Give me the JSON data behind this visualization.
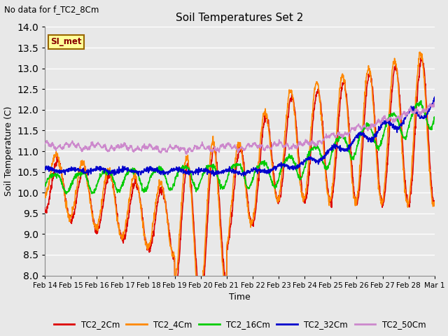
{
  "title": "Soil Temperatures Set 2",
  "subtitle": "No data for f_TC2_8Cm",
  "xlabel": "Time",
  "ylabel": "Soil Temperature (C)",
  "ylim": [
    8.0,
    14.0
  ],
  "yticks": [
    8.0,
    8.5,
    9.0,
    9.5,
    10.0,
    10.5,
    11.0,
    11.5,
    12.0,
    12.5,
    13.0,
    13.5,
    14.0
  ],
  "bg_color": "#e8e8e8",
  "plot_bg_color": "#e8e8e8",
  "grid_color": "#ffffff",
  "legend_label": "SI_met",
  "legend_box_color": "#ffff99",
  "legend_box_edge": "#996600",
  "series": {
    "TC2_2Cm": {
      "color": "#dd0000",
      "lw": 1.2
    },
    "TC2_4Cm": {
      "color": "#ff8800",
      "lw": 1.2
    },
    "TC2_16Cm": {
      "color": "#00cc00",
      "lw": 1.2
    },
    "TC2_32Cm": {
      "color": "#0000cc",
      "lw": 1.2
    },
    "TC2_50Cm": {
      "color": "#cc88cc",
      "lw": 1.2
    }
  }
}
